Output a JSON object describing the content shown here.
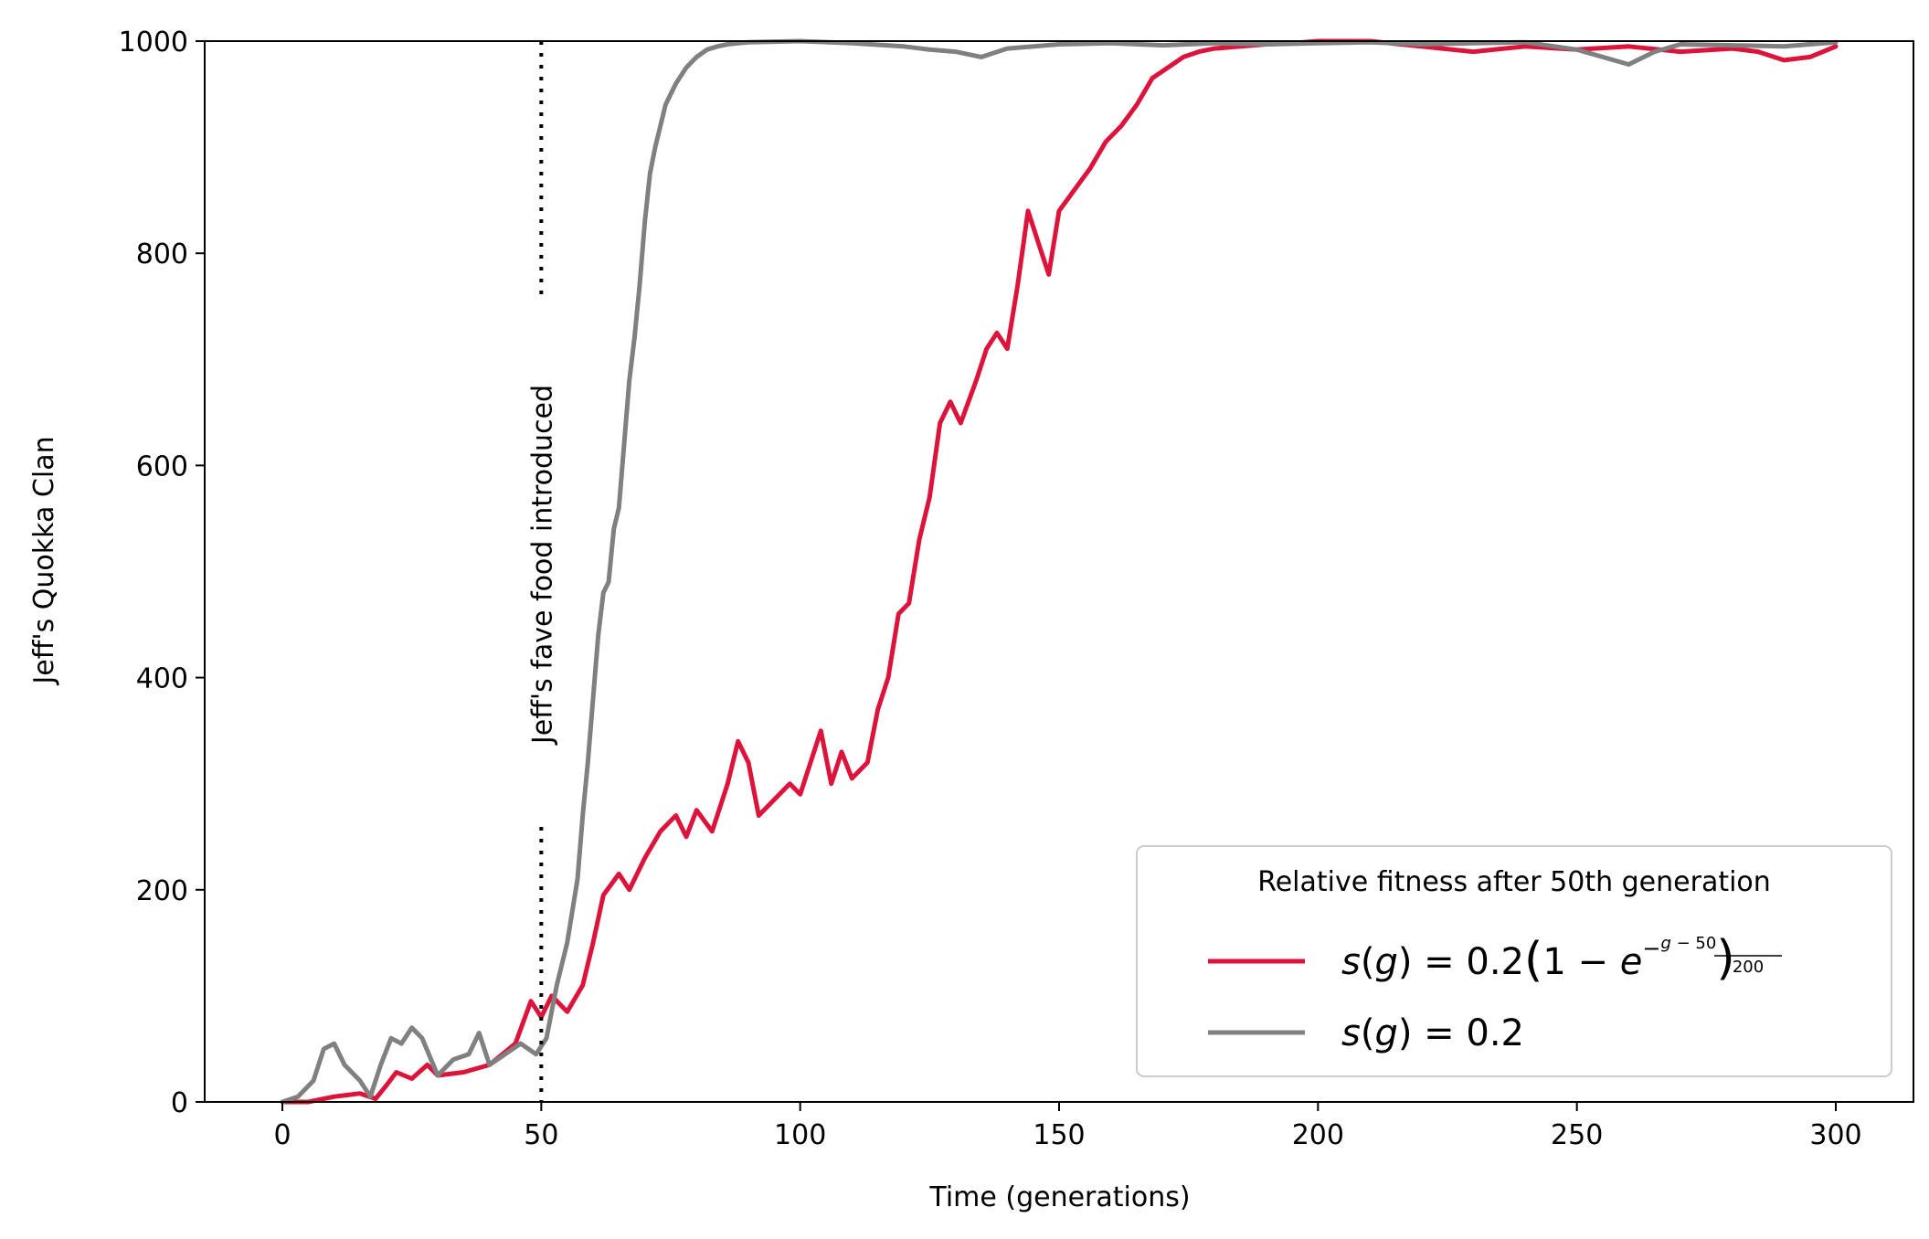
{
  "chart_data": {
    "type": "line",
    "title": "",
    "xlabel": "Time (generations)",
    "ylabel": "Jeff's Quokka Clan",
    "xlim": [
      -15,
      315
    ],
    "ylim": [
      0,
      1000
    ],
    "x_ticks": [
      0,
      50,
      100,
      150,
      200,
      250,
      300
    ],
    "y_ticks": [
      0,
      200,
      400,
      600,
      800,
      1000
    ],
    "grid": false,
    "annotation": {
      "text": "Jeff's fave food introduced",
      "x": 50,
      "style": "dotted vertical line"
    },
    "legend": {
      "title": "Relative fitness after 50th generation",
      "placement": "lower-right"
    },
    "series": [
      {
        "name": "s(g) = 0.2(1 − e^(−(g−50)/200))",
        "color": "#DC143C",
        "points": [
          [
            0,
            0
          ],
          [
            5,
            0
          ],
          [
            10,
            5
          ],
          [
            15,
            8
          ],
          [
            18,
            3
          ],
          [
            20,
            15
          ],
          [
            22,
            28
          ],
          [
            25,
            22
          ],
          [
            28,
            35
          ],
          [
            30,
            25
          ],
          [
            35,
            28
          ],
          [
            40,
            35
          ],
          [
            45,
            55
          ],
          [
            48,
            95
          ],
          [
            50,
            80
          ],
          [
            52,
            100
          ],
          [
            55,
            85
          ],
          [
            58,
            110
          ],
          [
            60,
            150
          ],
          [
            62,
            195
          ],
          [
            65,
            215
          ],
          [
            67,
            200
          ],
          [
            70,
            230
          ],
          [
            73,
            255
          ],
          [
            76,
            270
          ],
          [
            78,
            250
          ],
          [
            80,
            275
          ],
          [
            83,
            255
          ],
          [
            86,
            300
          ],
          [
            88,
            340
          ],
          [
            90,
            320
          ],
          [
            92,
            270
          ],
          [
            95,
            285
          ],
          [
            98,
            300
          ],
          [
            100,
            290
          ],
          [
            102,
            320
          ],
          [
            104,
            350
          ],
          [
            106,
            300
          ],
          [
            108,
            330
          ],
          [
            110,
            305
          ],
          [
            113,
            320
          ],
          [
            115,
            370
          ],
          [
            117,
            400
          ],
          [
            119,
            460
          ],
          [
            121,
            470
          ],
          [
            123,
            530
          ],
          [
            125,
            570
          ],
          [
            127,
            640
          ],
          [
            129,
            660
          ],
          [
            131,
            640
          ],
          [
            134,
            680
          ],
          [
            136,
            710
          ],
          [
            138,
            725
          ],
          [
            140,
            710
          ],
          [
            142,
            770
          ],
          [
            144,
            840
          ],
          [
            146,
            810
          ],
          [
            148,
            780
          ],
          [
            150,
            840
          ],
          [
            153,
            860
          ],
          [
            156,
            880
          ],
          [
            159,
            905
          ],
          [
            162,
            920
          ],
          [
            165,
            940
          ],
          [
            168,
            965
          ],
          [
            171,
            975
          ],
          [
            174,
            985
          ],
          [
            177,
            990
          ],
          [
            180,
            993
          ],
          [
            185,
            995
          ],
          [
            190,
            997
          ],
          [
            195,
            998
          ],
          [
            200,
            1000
          ],
          [
            210,
            1000
          ],
          [
            220,
            995
          ],
          [
            230,
            990
          ],
          [
            240,
            995
          ],
          [
            250,
            992
          ],
          [
            260,
            995
          ],
          [
            270,
            990
          ],
          [
            280,
            993
          ],
          [
            285,
            990
          ],
          [
            290,
            982
          ],
          [
            295,
            985
          ],
          [
            300,
            995
          ]
        ]
      },
      {
        "name": "s(g) = 0.2",
        "color": "#808080",
        "points": [
          [
            0,
            0
          ],
          [
            3,
            5
          ],
          [
            6,
            20
          ],
          [
            8,
            50
          ],
          [
            10,
            55
          ],
          [
            12,
            35
          ],
          [
            15,
            20
          ],
          [
            17,
            5
          ],
          [
            19,
            35
          ],
          [
            21,
            60
          ],
          [
            23,
            55
          ],
          [
            25,
            70
          ],
          [
            27,
            60
          ],
          [
            30,
            25
          ],
          [
            33,
            40
          ],
          [
            36,
            45
          ],
          [
            38,
            65
          ],
          [
            40,
            35
          ],
          [
            43,
            45
          ],
          [
            46,
            55
          ],
          [
            49,
            45
          ],
          [
            51,
            60
          ],
          [
            53,
            110
          ],
          [
            55,
            150
          ],
          [
            57,
            210
          ],
          [
            58,
            270
          ],
          [
            59,
            320
          ],
          [
            60,
            380
          ],
          [
            61,
            440
          ],
          [
            62,
            480
          ],
          [
            63,
            490
          ],
          [
            64,
            540
          ],
          [
            65,
            560
          ],
          [
            66,
            620
          ],
          [
            67,
            680
          ],
          [
            68,
            720
          ],
          [
            69,
            770
          ],
          [
            70,
            830
          ],
          [
            71,
            875
          ],
          [
            72,
            900
          ],
          [
            73,
            920
          ],
          [
            74,
            940
          ],
          [
            75,
            950
          ],
          [
            76,
            960
          ],
          [
            78,
            975
          ],
          [
            80,
            985
          ],
          [
            82,
            992
          ],
          [
            84,
            995
          ],
          [
            86,
            997
          ],
          [
            88,
            998
          ],
          [
            90,
            999
          ],
          [
            100,
            1000
          ],
          [
            110,
            998
          ],
          [
            120,
            995
          ],
          [
            125,
            992
          ],
          [
            130,
            990
          ],
          [
            135,
            985
          ],
          [
            140,
            993
          ],
          [
            150,
            997
          ],
          [
            160,
            998
          ],
          [
            170,
            996
          ],
          [
            180,
            998
          ],
          [
            190,
            997
          ],
          [
            200,
            998
          ],
          [
            210,
            999
          ],
          [
            220,
            997
          ],
          [
            230,
            998
          ],
          [
            240,
            999
          ],
          [
            250,
            992
          ],
          [
            255,
            985
          ],
          [
            260,
            978
          ],
          [
            265,
            990
          ],
          [
            270,
            997
          ],
          [
            280,
            996
          ],
          [
            290,
            995
          ],
          [
            300,
            999
          ]
        ]
      }
    ]
  }
}
